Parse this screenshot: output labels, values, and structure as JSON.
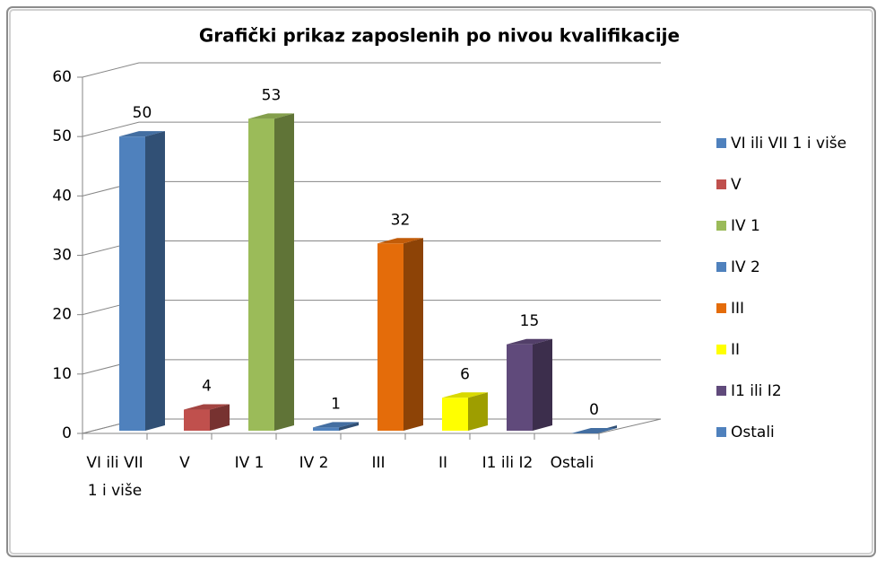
{
  "chart_data": {
    "type": "bar3d",
    "title": "Grafički prikaz zaposlenih po nivou kvalifikacije",
    "categories": [
      "VI ili VII 1 i više",
      "V",
      "IV 1",
      "IV 2",
      "III",
      "II",
      "I1 ili I2",
      "Ostali"
    ],
    "values": [
      50,
      4,
      53,
      1,
      32,
      6,
      15,
      0
    ],
    "colors": [
      "#4f81bd",
      "#c0504d",
      "#9bbb59",
      "#4f81bd",
      "#e46c0a",
      "#ffff00",
      "#604a7b",
      "#4f81bd"
    ],
    "ylim": [
      0,
      60
    ],
    "yticks": [
      0,
      10,
      20,
      30,
      40,
      50,
      60
    ],
    "grid": true,
    "legend": "right"
  }
}
